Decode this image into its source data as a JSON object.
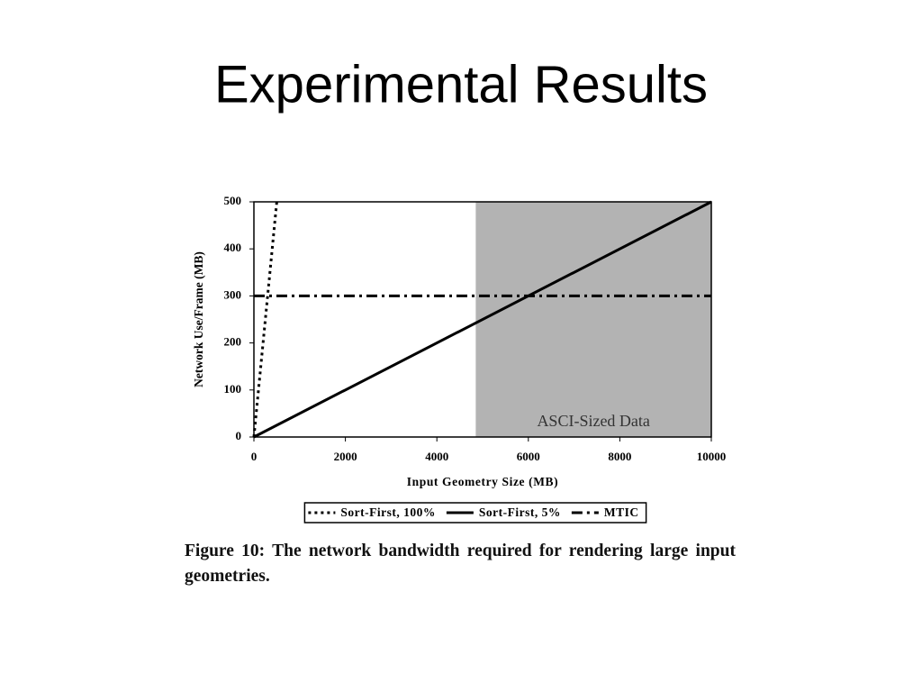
{
  "slide_title": "Experimental Results",
  "chart_data": {
    "type": "line",
    "x_label": "Input Geometry Size (MB)",
    "y_label": "Network Use/Frame (MB)",
    "xlim": [
      0,
      10000
    ],
    "xticks": [
      0,
      2000,
      4000,
      6000,
      8000,
      10000
    ],
    "ylim": [
      0,
      500
    ],
    "yticks": [
      0,
      100,
      200,
      300,
      400,
      500
    ],
    "shaded_region": {
      "x": [
        4850,
        10000
      ],
      "label": "ASCI-Sized Data",
      "color": "#b3b3b3"
    },
    "series": [
      {
        "name": "Sort-First, 100%",
        "color": "#000000",
        "style": "dotted",
        "x": [
          0,
          500
        ],
        "values": [
          0,
          500
        ]
      },
      {
        "name": "Sort-First, 5%",
        "color": "#000000",
        "style": "solid",
        "x": [
          0,
          10000
        ],
        "values": [
          0,
          500
        ]
      },
      {
        "name": "MTIC",
        "color": "#000000",
        "style": "dashdot",
        "x": [
          0,
          10000
        ],
        "values": [
          300,
          300
        ]
      }
    ],
    "legend": "bottom"
  },
  "caption": "Figure 10: The network bandwidth required for rendering large input geometries."
}
